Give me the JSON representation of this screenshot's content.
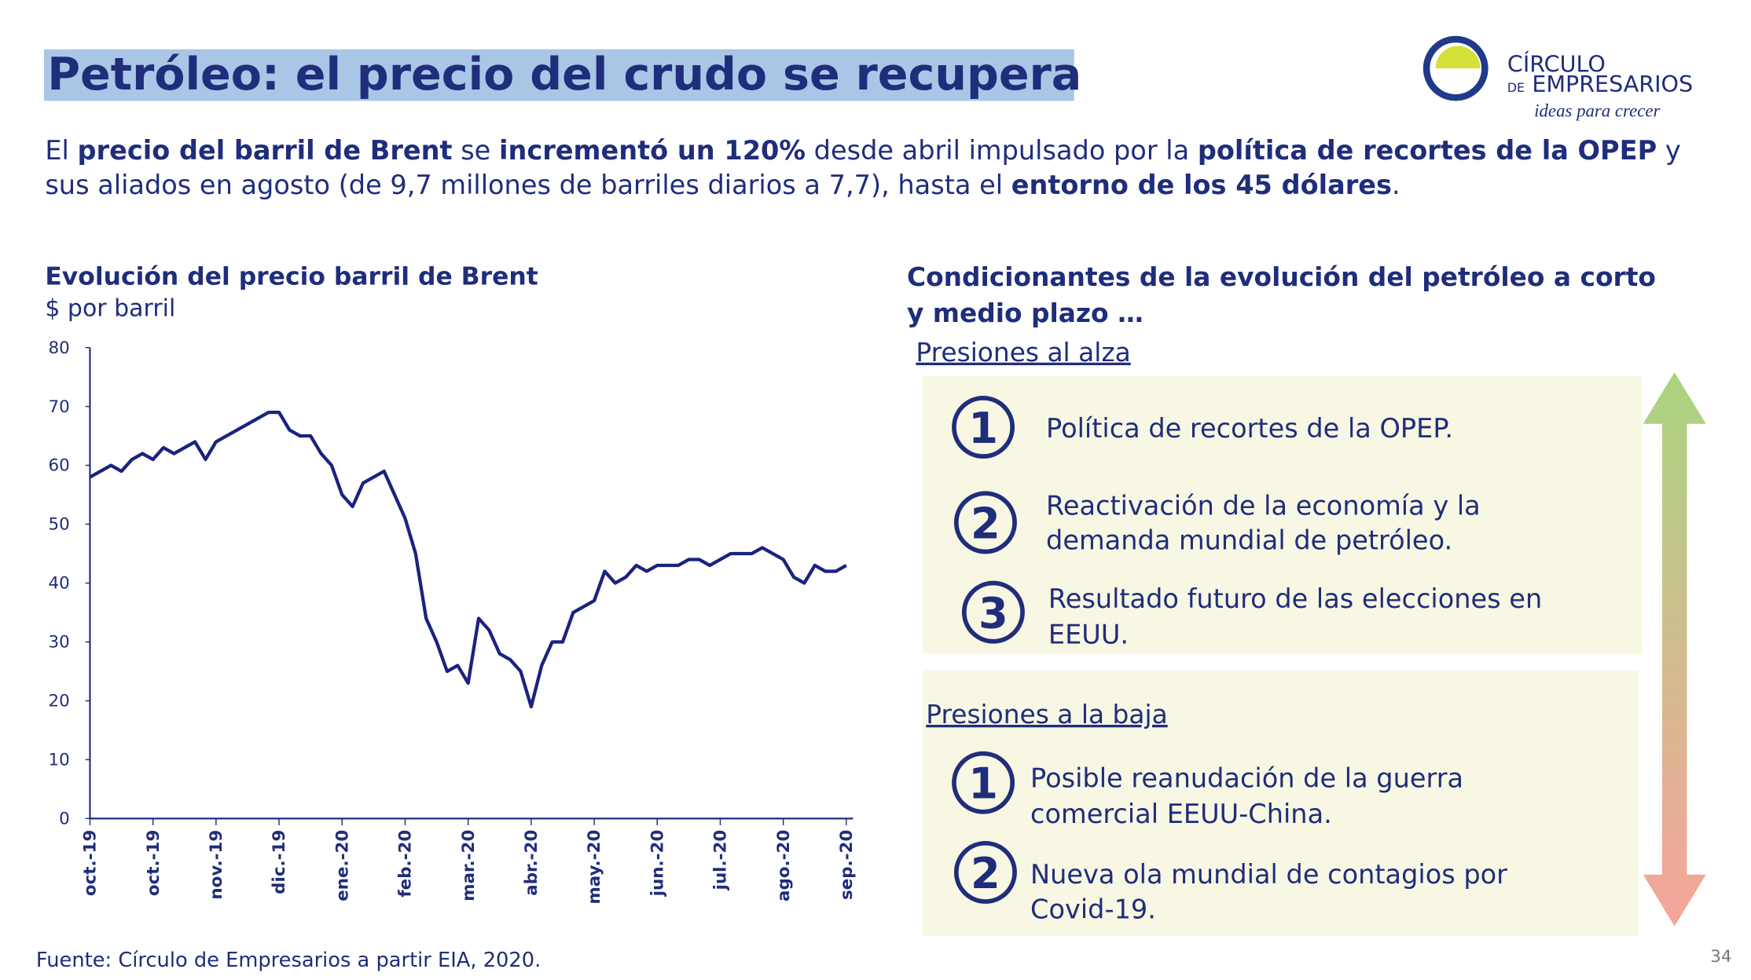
{
  "header": {
    "title": "Petróleo: el precio del crudo se recupera"
  },
  "logo": {
    "name_top": "CÍRCULO",
    "name_prefix": "DE",
    "name_bottom": "EMPRESARIOS",
    "tagline": "ideas para crecer"
  },
  "intro": {
    "lines": [
      [
        {
          "text": "El ",
          "bold": false
        },
        {
          "text": "precio del barril de Brent",
          "bold": true
        },
        {
          "text": " se ",
          "bold": false
        },
        {
          "text": "incrementó un 120%",
          "bold": true
        },
        {
          "text": " desde abril impulsado por la ",
          "bold": false
        },
        {
          "text": "política de recortes de la OPEP",
          "bold": true
        },
        {
          "text": " y",
          "bold": false
        }
      ],
      [
        {
          "text": "sus aliados en agosto (de 9,7 millones de barriles diarios a 7,7), hasta el ",
          "bold": false
        },
        {
          "text": "entorno de los 45 dólares",
          "bold": true
        },
        {
          "text": ".",
          "bold": false
        }
      ]
    ]
  },
  "chart_data": {
    "type": "line",
    "title": "Evolución del precio barril de Brent",
    "subtitle": "$ por barril",
    "categories": [
      "oct.-19",
      null,
      null,
      null,
      null,
      null,
      "oct.-19",
      null,
      null,
      null,
      null,
      null,
      "nov.-19",
      null,
      null,
      null,
      null,
      null,
      "dic.-19",
      null,
      null,
      null,
      null,
      null,
      "ene.-20",
      null,
      null,
      null,
      null,
      null,
      "feb.-20",
      null,
      null,
      null,
      null,
      null,
      "mar.-20",
      null,
      null,
      null,
      null,
      null,
      "abr.-20",
      null,
      null,
      null,
      null,
      null,
      "may.-20",
      null,
      null,
      null,
      null,
      null,
      "jun.-20",
      null,
      null,
      null,
      null,
      null,
      "jul.-20",
      null,
      null,
      null,
      null,
      null,
      "ago.-20",
      null,
      null,
      null,
      null,
      null,
      "sep.-20"
    ],
    "values": [
      58,
      59,
      60,
      59,
      61,
      62,
      61,
      63,
      62,
      63,
      64,
      61,
      64,
      65,
      66,
      67,
      68,
      69,
      69,
      66,
      65,
      65,
      62,
      60,
      55,
      53,
      57,
      58,
      59,
      55,
      51,
      45,
      34,
      30,
      25,
      26,
      23,
      34,
      32,
      28,
      27,
      25,
      19,
      26,
      30,
      30,
      35,
      36,
      37,
      42,
      40,
      41,
      43,
      42,
      43,
      43,
      43,
      44,
      44,
      43,
      44,
      45,
      45,
      45,
      46,
      45,
      44,
      41,
      40,
      43,
      42,
      42,
      43
    ],
    "color": "#1a237e",
    "ylim": [
      0,
      80
    ],
    "yticks": [
      0,
      10,
      20,
      30,
      40,
      50,
      60,
      70,
      80
    ],
    "grid": false
  },
  "panel": {
    "heading": [
      "Condicionantes de la evolución del petróleo a corto",
      "y medio plazo …"
    ],
    "up_label": "Presiones al alza",
    "up_items": [
      {
        "number": "1",
        "lines": [
          "Política de recortes de la OPEP."
        ]
      },
      {
        "number": "2",
        "lines": [
          "Reactivación de la economía y la",
          "demanda mundial de petróleo."
        ]
      },
      {
        "number": "3",
        "lines": [
          "Resultado futuro de las elecciones en",
          "EEUU."
        ]
      }
    ],
    "down_label": "Presiones a la baja",
    "down_items": [
      {
        "number": "1",
        "lines": [
          "Posible reanudación de la guerra",
          "comercial EEUU-China."
        ]
      },
      {
        "number": "2",
        "lines": [
          "Nueva ola mundial de contagios por",
          "Covid-19."
        ]
      }
    ]
  },
  "source": "Fuente: Círculo de Empresarios a partir EIA, 2020.",
  "page_number": "34"
}
